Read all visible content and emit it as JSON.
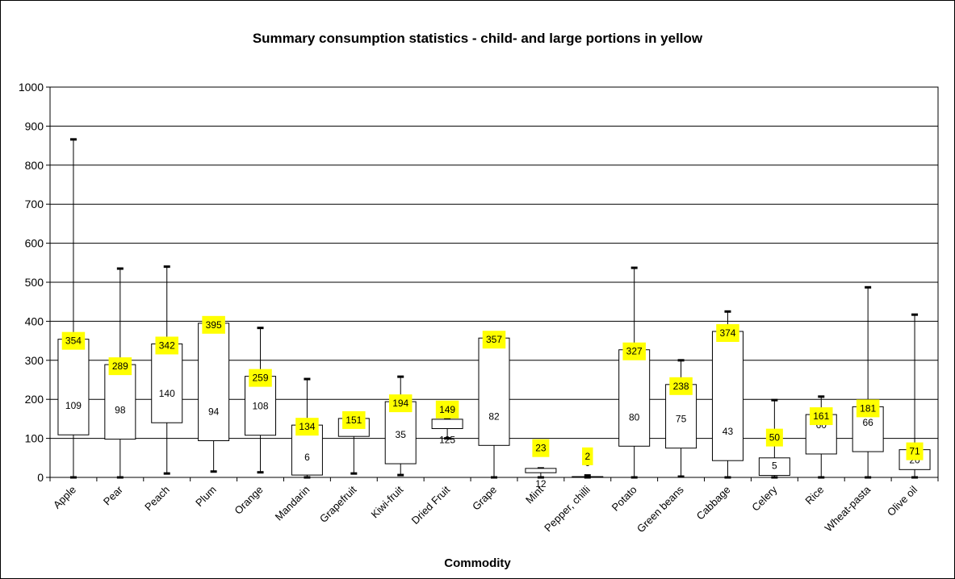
{
  "chart_data": {
    "type": "boxplot",
    "title": "Summary consumption statistics - child- and large portions in yellow",
    "xlabel": "Commodity",
    "ylabel": "",
    "ylim": [
      0,
      1000
    ],
    "yticks": [
      0,
      100,
      200,
      300,
      400,
      500,
      600,
      700,
      800,
      900,
      1000
    ],
    "grid": true,
    "highlight_color": "#ffff00",
    "categories": [
      "Apple",
      "Pear",
      "Peach",
      "Plum",
      "Orange",
      "Mandarin",
      "Grapefruit",
      "Kiwi-fruit",
      "Dried Fruit",
      "Grape",
      "Mint",
      "Pepper, chilli",
      "Potato",
      "Green beans",
      "Cabbage",
      "Celery",
      "Rice",
      "Wheat-pasta",
      "Olive oil"
    ],
    "boxes": [
      {
        "min": 0,
        "q1": 109,
        "q3": 354,
        "max": 866,
        "median_label": "109",
        "large_label": "354"
      },
      {
        "min": 0,
        "q1": 98,
        "q3": 289,
        "max": 535,
        "median_label": "98",
        "large_label": "289"
      },
      {
        "min": 10,
        "q1": 140,
        "q3": 342,
        "max": 540,
        "median_label": "140",
        "large_label": "342"
      },
      {
        "min": 15,
        "q1": 94,
        "q3": 395,
        "max": 395,
        "median_label": "94",
        "large_label": "395"
      },
      {
        "min": 13,
        "q1": 108,
        "q3": 259,
        "max": 383,
        "median_label": "108",
        "large_label": "259"
      },
      {
        "min": 0,
        "q1": 6,
        "q3": 134,
        "max": 252,
        "median_label": "6",
        "large_label": "134"
      },
      {
        "min": 10,
        "q1": 105,
        "q3": 151,
        "max": 151,
        "median_label": "",
        "large_label": "151"
      },
      {
        "min": 6,
        "q1": 35,
        "q3": 194,
        "max": 258,
        "median_label": "35",
        "large_label": "194"
      },
      {
        "min": 100,
        "q1": 125,
        "q3": 149,
        "max": 149,
        "median_label": "125",
        "large_label": "149"
      },
      {
        "min": 0,
        "q1": 82,
        "q3": 357,
        "max": 357,
        "median_label": "82",
        "large_label": "357"
      },
      {
        "min": 0,
        "q1": 12,
        "q3": 23,
        "max": 23,
        "median_label": "12",
        "large_label": "23"
      },
      {
        "min": 0,
        "q1": 0,
        "q3": 2,
        "max": 5,
        "median_label": "0",
        "large_label": "2"
      },
      {
        "min": 0,
        "q1": 80,
        "q3": 327,
        "max": 537,
        "median_label": "80",
        "large_label": "327"
      },
      {
        "min": 2,
        "q1": 75,
        "q3": 238,
        "max": 300,
        "median_label": "75",
        "large_label": "238"
      },
      {
        "min": 0,
        "q1": 43,
        "q3": 374,
        "max": 425,
        "median_label": "43",
        "large_label": "374"
      },
      {
        "min": 0,
        "q1": 5,
        "q3": 50,
        "max": 198,
        "median_label": "5",
        "large_label": "50"
      },
      {
        "min": 0,
        "q1": 60,
        "q3": 161,
        "max": 207,
        "median_label": "60",
        "large_label": "161"
      },
      {
        "min": 0,
        "q1": 66,
        "q3": 181,
        "max": 487,
        "median_label": "66",
        "large_label": "181"
      },
      {
        "min": 0,
        "q1": 20,
        "q3": 71,
        "max": 417,
        "median_label": "20",
        "large_label": "71"
      }
    ]
  }
}
